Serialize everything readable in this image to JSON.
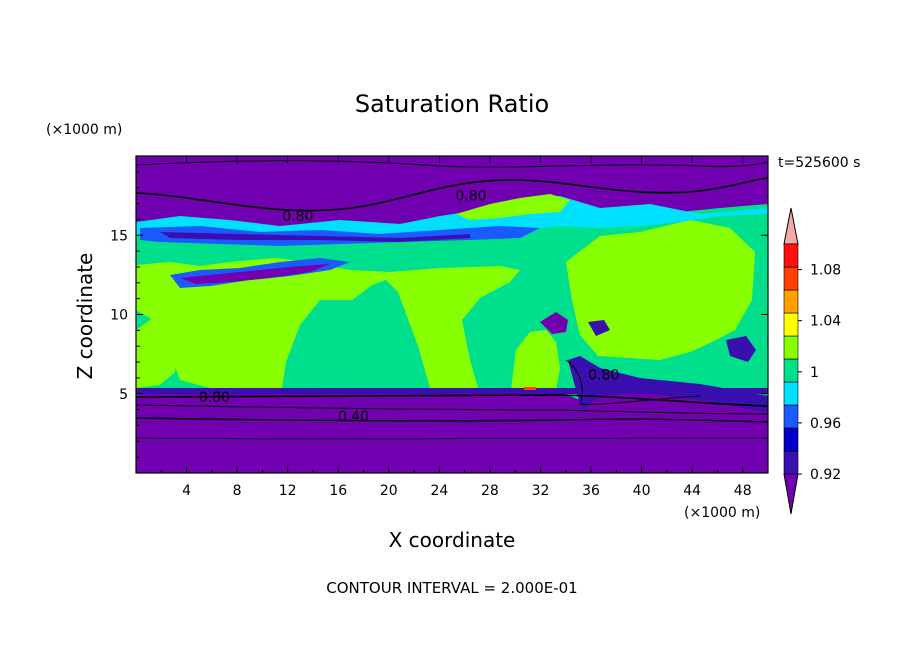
{
  "chart_data": {
    "type": "heatmap",
    "title": "Saturation Ratio",
    "xlabel": "X coordinate",
    "ylabel": "Z coordinate",
    "x_unit": "(×1000 m)",
    "y_unit": "(×1000 m)",
    "time_label": "t=525600 s",
    "footer": "CONTOUR INTERVAL = 2.000E-01",
    "xlim": [
      0,
      50
    ],
    "ylim": [
      0,
      20
    ],
    "x_ticks": [
      4,
      8,
      12,
      16,
      20,
      24,
      28,
      32,
      36,
      40,
      44,
      48
    ],
    "y_ticks": [
      5,
      10,
      15
    ],
    "colorbar": {
      "levels": [
        0.92,
        0.94,
        0.96,
        0.98,
        1,
        1.02,
        1.04,
        1.06,
        1.08,
        1.1
      ],
      "tick_labels": [
        "0.92",
        "0.96",
        "1",
        "1.04",
        "1.08"
      ],
      "tick_values": [
        0.92,
        0.96,
        1,
        1.04,
        1.08
      ],
      "under_color": "#7000b0",
      "over_color": "#f4a8a8",
      "colors": [
        "#3a0fb0",
        "#0000c8",
        "#1a5aff",
        "#00e0ff",
        "#00e08c",
        "#88ff00",
        "#ffff00",
        "#ffa000",
        "#ff4000",
        "#ff1010"
      ]
    },
    "contour_labels": [
      {
        "text": "0.80",
        "x": 26.5,
        "y": 17.5
      },
      {
        "text": "0.80",
        "x": 12.8,
        "y": 16.2
      },
      {
        "text": "0.80",
        "x": 6.2,
        "y": 4.8
      },
      {
        "text": "0.40",
        "x": 17.2,
        "y": 3.6
      },
      {
        "text": "0.80",
        "x": 37.0,
        "y": 6.2
      }
    ]
  }
}
